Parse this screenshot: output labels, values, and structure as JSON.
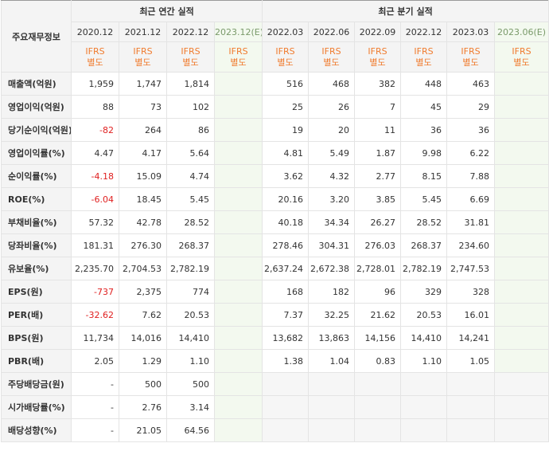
{
  "corner_label": "주요재무정보",
  "annual_title": "최근 연간 실적",
  "quarterly_title": "최근 분기 실적",
  "annual_periods": [
    "2020.12",
    "2021.12",
    "2022.12",
    "2023.12(E)"
  ],
  "quarterly_periods": [
    "2022.03",
    "2022.06",
    "2022.09",
    "2022.12",
    "2023.03",
    "2023.06(E)"
  ],
  "ifrs": "IFRS",
  "ifrs_type": "별도",
  "rows": [
    {
      "label": "매출액(억원)",
      "annual": [
        "1,959",
        "1,747",
        "1,814",
        ""
      ],
      "quarterly": [
        "516",
        "468",
        "382",
        "448",
        "463",
        ""
      ]
    },
    {
      "label": "영업이익(억원)",
      "annual": [
        "88",
        "73",
        "102",
        ""
      ],
      "quarterly": [
        "25",
        "26",
        "7",
        "45",
        "29",
        ""
      ]
    },
    {
      "label": "당기순이익(억원)",
      "annual": [
        "-82",
        "264",
        "86",
        ""
      ],
      "quarterly": [
        "19",
        "20",
        "11",
        "36",
        "36",
        ""
      ]
    },
    {
      "label": "영업이익률(%)",
      "annual": [
        "4.47",
        "4.17",
        "5.64",
        ""
      ],
      "quarterly": [
        "4.81",
        "5.49",
        "1.87",
        "9.98",
        "6.22",
        ""
      ]
    },
    {
      "label": "순이익률(%)",
      "annual": [
        "-4.18",
        "15.09",
        "4.74",
        ""
      ],
      "quarterly": [
        "3.62",
        "4.32",
        "2.77",
        "8.15",
        "7.88",
        ""
      ]
    },
    {
      "label": "ROE(%)",
      "annual": [
        "-6.04",
        "18.45",
        "5.45",
        ""
      ],
      "quarterly": [
        "20.16",
        "3.20",
        "3.85",
        "5.45",
        "6.69",
        ""
      ]
    },
    {
      "label": "부채비율(%)",
      "annual": [
        "57.32",
        "42.78",
        "28.52",
        ""
      ],
      "quarterly": [
        "40.18",
        "34.34",
        "26.27",
        "28.52",
        "31.81",
        ""
      ]
    },
    {
      "label": "당좌비율(%)",
      "annual": [
        "181.31",
        "276.30",
        "268.37",
        ""
      ],
      "quarterly": [
        "278.46",
        "304.31",
        "276.03",
        "268.37",
        "234.60",
        ""
      ]
    },
    {
      "label": "유보율(%)",
      "annual": [
        "2,235.70",
        "2,704.53",
        "2,782.19",
        ""
      ],
      "quarterly": [
        "2,637.24",
        "2,672.38",
        "2,728.01",
        "2,782.19",
        "2,747.53",
        ""
      ]
    },
    {
      "label": "EPS(원)",
      "annual": [
        "-737",
        "2,375",
        "774",
        ""
      ],
      "quarterly": [
        "168",
        "182",
        "96",
        "329",
        "328",
        ""
      ]
    },
    {
      "label": "PER(배)",
      "annual": [
        "-32.62",
        "7.62",
        "20.53",
        ""
      ],
      "quarterly": [
        "7.37",
        "32.25",
        "21.62",
        "20.53",
        "16.01",
        ""
      ]
    },
    {
      "label": "BPS(원)",
      "annual": [
        "11,734",
        "14,016",
        "14,410",
        ""
      ],
      "quarterly": [
        "13,682",
        "13,863",
        "14,156",
        "14,410",
        "14,241",
        ""
      ]
    },
    {
      "label": "PBR(배)",
      "annual": [
        "2.05",
        "1.29",
        "1.10",
        ""
      ],
      "quarterly": [
        "1.38",
        "1.04",
        "0.83",
        "1.10",
        "1.05",
        ""
      ]
    },
    {
      "label": "주당배당금(원)",
      "annual": [
        "-",
        "500",
        "500",
        ""
      ],
      "quarterly": null
    },
    {
      "label": "시가배당률(%)",
      "annual": [
        "-",
        "2.76",
        "3.14",
        ""
      ],
      "quarterly": null
    },
    {
      "label": "배당성향(%)",
      "annual": [
        "-",
        "21.05",
        "64.56",
        ""
      ],
      "quarterly": null
    }
  ],
  "colors": {
    "negative": "#e02020",
    "ifrs": "#f07b2e",
    "header_bg": "#f4f4f4",
    "estimate_bg": "#f6fbf2"
  }
}
